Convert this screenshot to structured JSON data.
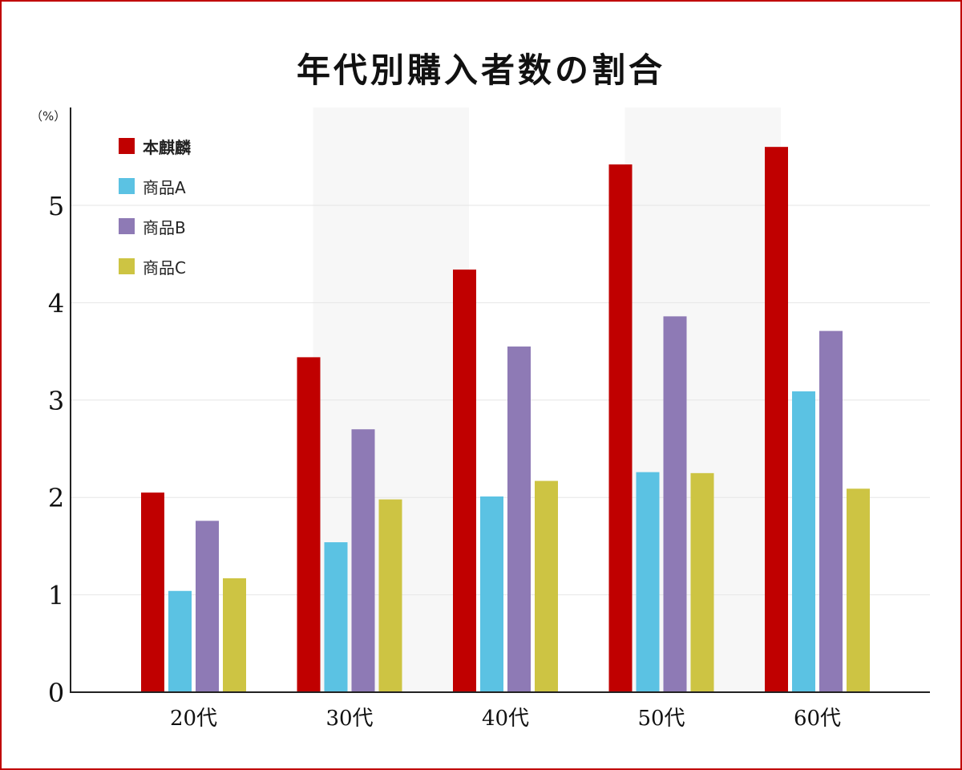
{
  "chart_data": {
    "type": "bar",
    "title": "年代別購入者数の割合",
    "ylabel": "（%）",
    "xlabel": "",
    "categories": [
      "20代",
      "30代",
      "40代",
      "50代",
      "60代"
    ],
    "ylim": [
      0,
      6
    ],
    "yticks": [
      0,
      1,
      2,
      3,
      4,
      5
    ],
    "grid": true,
    "legend_position": "top-left",
    "alternating_column_shading": true,
    "series": [
      {
        "name": "本麒麟",
        "color": "#c00000",
        "values": [
          2.05,
          3.44,
          4.34,
          5.42,
          5.6
        ]
      },
      {
        "name": "商品A",
        "color": "#5bc2e3",
        "values": [
          1.04,
          1.54,
          2.01,
          2.26,
          3.09
        ]
      },
      {
        "name": "商品B",
        "color": "#8e7ab5",
        "values": [
          1.76,
          2.7,
          3.55,
          3.86,
          3.71
        ]
      },
      {
        "name": "商品C",
        "color": "#cdc443",
        "values": [
          1.17,
          1.98,
          2.17,
          2.25,
          2.09
        ]
      }
    ]
  }
}
